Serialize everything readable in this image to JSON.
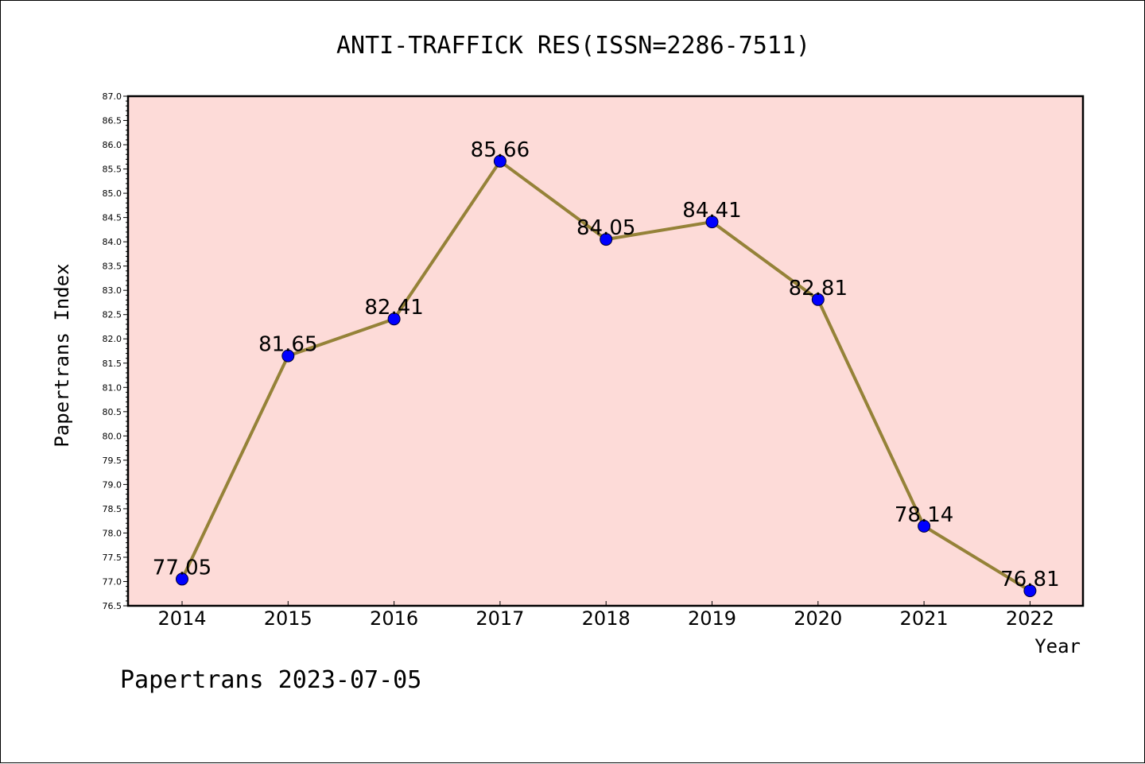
{
  "chart_data": {
    "type": "line",
    "title": "ANTI-TRAFFICK RES(ISSN=2286-7511)",
    "xlabel": "Year",
    "ylabel": "Papertrans Index",
    "categories": [
      "2014",
      "2015",
      "2016",
      "2017",
      "2018",
      "2019",
      "2020",
      "2021",
      "2022"
    ],
    "series": [
      {
        "values": [
          77.05,
          81.65,
          82.41,
          85.66,
          84.05,
          84.41,
          82.81,
          78.14,
          76.81
        ],
        "data_labels": [
          "77.05",
          "81.65",
          "82.41",
          "85.66",
          "84.05",
          "84.41",
          "82.81",
          "78.14",
          "76.81"
        ]
      }
    ],
    "ylim": [
      76.5,
      87.0
    ],
    "y_ticks": [
      "76.5",
      "77.0",
      "77.5",
      "78.0",
      "78.5",
      "79.0",
      "79.5",
      "80.0",
      "80.5",
      "81.0",
      "81.5",
      "82.0",
      "82.5",
      "83.0",
      "83.5",
      "84.0",
      "84.5",
      "85.0",
      "85.5",
      "86.0",
      "86.5",
      "87.0"
    ],
    "grid": false,
    "colors": {
      "plot_background": "#fddbd8",
      "line": "#958238",
      "marker": "#0000ff"
    }
  },
  "footer": {
    "watermark": "Papertrans 2023-07-05"
  }
}
